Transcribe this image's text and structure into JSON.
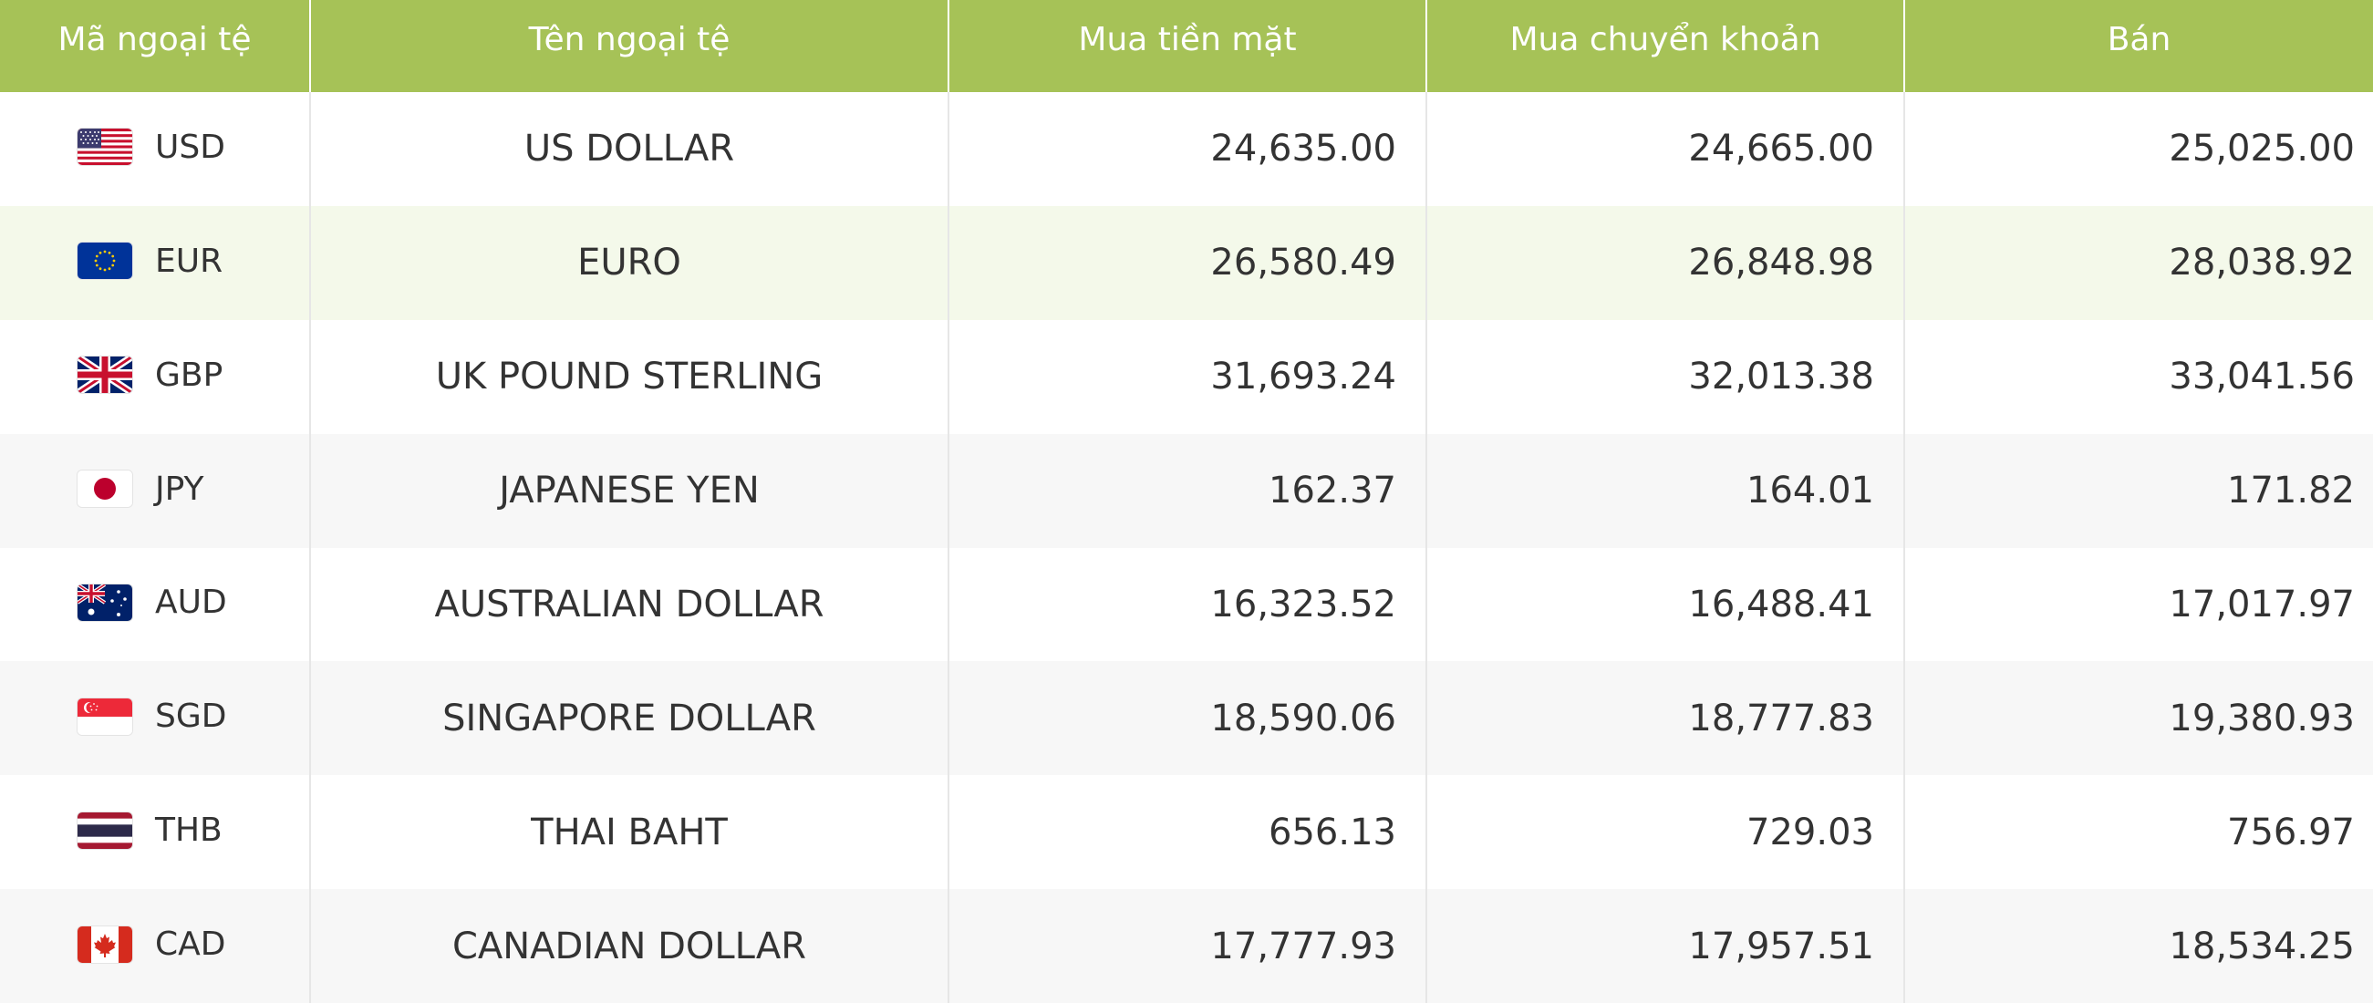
{
  "table": {
    "headers": {
      "code": "Mã ngoại tệ",
      "name": "Tên ngoại tệ",
      "cash_buy": "Mua tiền mặt",
      "transfer_buy": "Mua chuyển khoản",
      "sell": "Bán"
    },
    "rows": [
      {
        "code": "USD",
        "flag": "us-flag-icon",
        "name": "US DOLLAR",
        "cash_buy": "24,635.00",
        "transfer_buy": "24,665.00",
        "sell": "25,025.00"
      },
      {
        "code": "EUR",
        "flag": "eu-flag-icon",
        "name": "EURO",
        "cash_buy": "26,580.49",
        "transfer_buy": "26,848.98",
        "sell": "28,038.92"
      },
      {
        "code": "GBP",
        "flag": "uk-flag-icon",
        "name": "UK POUND STERLING",
        "cash_buy": "31,693.24",
        "transfer_buy": "32,013.38",
        "sell": "33,041.56"
      },
      {
        "code": "JPY",
        "flag": "japan-flag-icon",
        "name": "JAPANESE YEN",
        "cash_buy": "162.37",
        "transfer_buy": "164.01",
        "sell": "171.82"
      },
      {
        "code": "AUD",
        "flag": "australia-flag-icon",
        "name": "AUSTRALIAN DOLLAR",
        "cash_buy": "16,323.52",
        "transfer_buy": "16,488.41",
        "sell": "17,017.97"
      },
      {
        "code": "SGD",
        "flag": "singapore-flag-icon",
        "name": "SINGAPORE DOLLAR",
        "cash_buy": "18,590.06",
        "transfer_buy": "18,777.83",
        "sell": "19,380.93"
      },
      {
        "code": "THB",
        "flag": "thailand-flag-icon",
        "name": "THAI BAHT",
        "cash_buy": "656.13",
        "transfer_buy": "729.03",
        "sell": "756.97"
      },
      {
        "code": "CAD",
        "flag": "canada-flag-icon",
        "name": "CANADIAN DOLLAR",
        "cash_buy": "17,777.93",
        "transfer_buy": "17,957.51",
        "sell": "18,534.25"
      }
    ]
  },
  "colors": {
    "header_bg": "#a6c257",
    "header_text": "#ffffff",
    "row_alt_bg": "#f7f7f7",
    "row_highlight_bg": "#f4f9ea",
    "text": "#333333"
  }
}
